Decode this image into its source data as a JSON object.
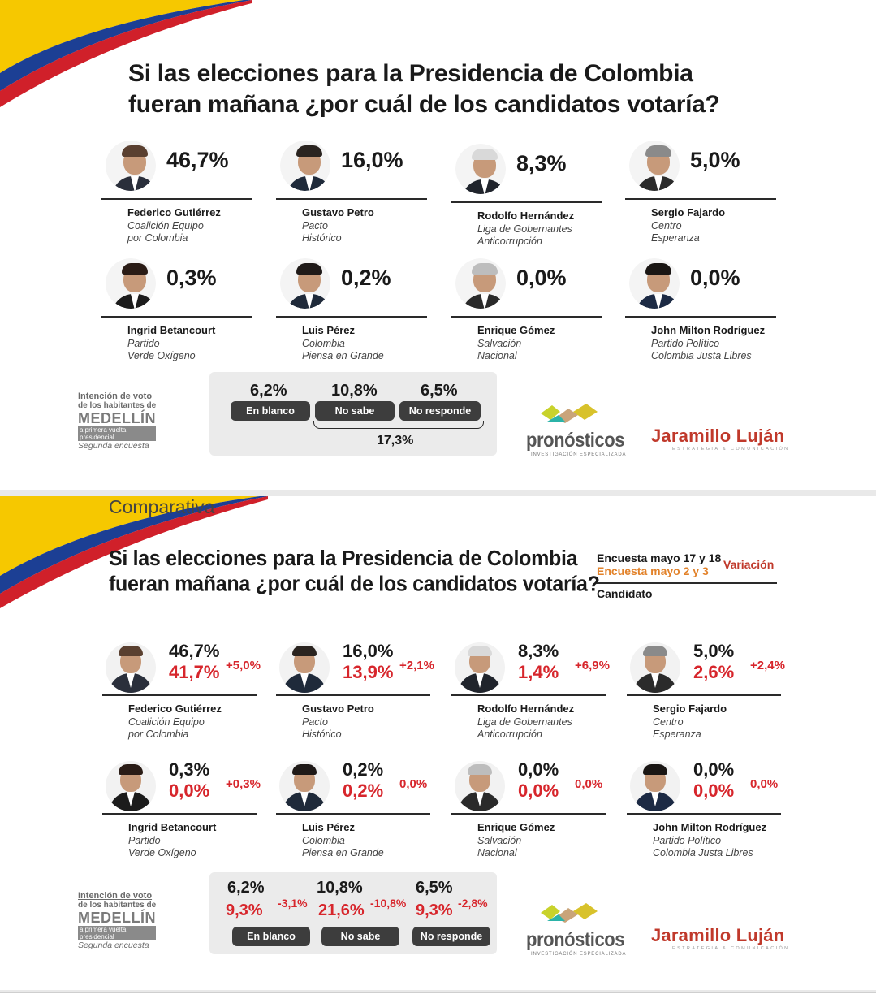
{
  "panel1": {
    "title_l1": "Si las elecciones para la Presidencia de Colombia",
    "title_l2": "fueran mañana ¿por cuál de los candidatos votaría?",
    "candidates": [
      {
        "name": "Federico Gutiérrez",
        "party1": "Coalición Equipo",
        "party2": "por Colombia",
        "pct": "46,7%"
      },
      {
        "name": "Gustavo Petro",
        "party1": "Pacto",
        "party2": "Histórico",
        "pct": "16,0%"
      },
      {
        "name": "Rodolfo Hernández",
        "party1": "Liga de Gobernantes",
        "party2": "Anticorrupción",
        "pct": "8,3%"
      },
      {
        "name": "Sergio Fajardo",
        "party1": "Centro",
        "party2": "Esperanza",
        "pct": "5,0%"
      },
      {
        "name": "Ingrid Betancourt",
        "party1": "Partido",
        "party2": "Verde Oxígeno",
        "pct": "0,3%"
      },
      {
        "name": "Luis Pérez",
        "party1": "Colombia",
        "party2": "Piensa en Grande",
        "pct": "0,2%"
      },
      {
        "name": "Enrique Gómez",
        "party1": "Salvación",
        "party2": "Nacional",
        "pct": "0,0%"
      },
      {
        "name": "John Milton Rodríguez",
        "party1": "Partido Político",
        "party2": "Colombia Justa Libres",
        "pct": "0,0%"
      }
    ],
    "other": [
      {
        "label": "En blanco",
        "pct": "6,2%"
      },
      {
        "label": "No sabe",
        "pct": "10,8%"
      },
      {
        "label": "No responde",
        "pct": "6,5%"
      }
    ],
    "other_total": "17,3%"
  },
  "panel2": {
    "title_l1": "Si las elecciones para la Presidencia de Colombia",
    "title_l2": "fueran mañana ¿por cuál de los candidatos votaría?",
    "subtitle": "Comparativa",
    "legend": {
      "current": "Encuesta mayo 17 y 18",
      "previous": "Encuesta mayo 2 y 3",
      "variation": "Variación",
      "candidate": "Candidato"
    },
    "candidates": [
      {
        "name": "Federico Gutiérrez",
        "party1": "Coalición Equipo",
        "party2": "por Colombia",
        "now": "46,7%",
        "prev": "41,7%",
        "var": "+5,0%"
      },
      {
        "name": "Gustavo Petro",
        "party1": "Pacto",
        "party2": "Histórico",
        "now": "16,0%",
        "prev": "13,9%",
        "var": "+2,1%"
      },
      {
        "name": "Rodolfo Hernández",
        "party1": "Liga de Gobernantes",
        "party2": "Anticorrupción",
        "now": "8,3%",
        "prev": "1,4%",
        "var": "+6,9%"
      },
      {
        "name": "Sergio Fajardo",
        "party1": "Centro",
        "party2": "Esperanza",
        "now": "5,0%",
        "prev": "2,6%",
        "var": "+2,4%"
      },
      {
        "name": "Ingrid Betancourt",
        "party1": "Partido",
        "party2": "Verde Oxígeno",
        "now": "0,3%",
        "prev": "0,0%",
        "var": "+0,3%"
      },
      {
        "name": "Luis Pérez",
        "party1": "Colombia",
        "party2": "Piensa en Grande",
        "now": "0,2%",
        "prev": "0,2%",
        "var": "0,0%"
      },
      {
        "name": "Enrique Gómez",
        "party1": "Salvación",
        "party2": "Nacional",
        "now": "0,0%",
        "prev": "0,0%",
        "var": "0,0%"
      },
      {
        "name": "John Milton Rodríguez",
        "party1": "Partido Político",
        "party2": "Colombia Justa Libres",
        "now": "0,0%",
        "prev": "0,0%",
        "var": "0,0%"
      }
    ],
    "other": [
      {
        "label": "En blanco",
        "now": "6,2%",
        "prev": "9,3%",
        "var": "-3,1%"
      },
      {
        "label": "No sabe",
        "now": "10,8%",
        "prev": "21,6%",
        "var": "-10,8%"
      },
      {
        "label": "No responde",
        "now": "6,5%",
        "prev": "9,3%",
        "var": "-2,8%"
      }
    ]
  },
  "source": {
    "l1": "Intención de voto",
    "l2": "de los habitantes de",
    "l3": "MEDELLÍN",
    "l4": "a primera vuelta presidencial",
    "l5": "Segunda encuesta"
  },
  "logos": {
    "pronosticos": "pronósticos",
    "pronosticos_sub": "INVESTIGACIÓN ESPECIALIZADA",
    "jaramillo": "Jaramillo Luján",
    "jaramillo_sub": "ESTRATEGIA & COMUNICACIÓN"
  },
  "colors": {
    "flag_yellow": "#f6c800",
    "flag_blue": "#1c3f94",
    "flag_red": "#d0202a",
    "previous_red": "#d7262c",
    "legend_orange": "#e2822a",
    "jaramillo_red": "#c0392b"
  },
  "chart_data": [
    {
      "type": "bar",
      "title": "Si las elecciones para la Presidencia de Colombia fueran mañana ¿por cuál de los candidatos votaría?",
      "categories": [
        "Federico Gutiérrez",
        "Gustavo Petro",
        "Rodolfo Hernández",
        "Sergio Fajardo",
        "Ingrid Betancourt",
        "Luis Pérez",
        "Enrique Gómez",
        "John Milton Rodríguez",
        "En blanco",
        "No sabe",
        "No responde"
      ],
      "values": [
        46.7,
        16.0,
        8.3,
        5.0,
        0.3,
        0.2,
        0.0,
        0.0,
        6.2,
        10.8,
        6.5
      ],
      "ylim": [
        0,
        100
      ]
    },
    {
      "type": "table",
      "title": "Si las elecciones para la Presidencia de Colombia fueran mañana ¿por cuál de los candidatos votaría?",
      "subtitle": "Comparativa",
      "categories": [
        "Federico Gutiérrez",
        "Gustavo Petro",
        "Rodolfo Hernández",
        "Sergio Fajardo",
        "Ingrid Betancourt",
        "Luis Pérez",
        "Enrique Gómez",
        "John Milton Rodríguez",
        "En blanco",
        "No sabe",
        "No responde"
      ],
      "series": [
        {
          "name": "Encuesta mayo 17 y 18",
          "values": [
            46.7,
            16.0,
            8.3,
            5.0,
            0.3,
            0.2,
            0.0,
            0.0,
            6.2,
            10.8,
            6.5
          ]
        },
        {
          "name": "Encuesta mayo 2 y 3",
          "values": [
            41.7,
            13.9,
            1.4,
            2.6,
            0.0,
            0.2,
            0.0,
            0.0,
            9.3,
            21.6,
            9.3
          ]
        },
        {
          "name": "Variación",
          "values": [
            5.0,
            2.1,
            6.9,
            2.4,
            0.3,
            0.0,
            0.0,
            0.0,
            -3.1,
            -10.8,
            -2.8
          ]
        }
      ]
    }
  ]
}
